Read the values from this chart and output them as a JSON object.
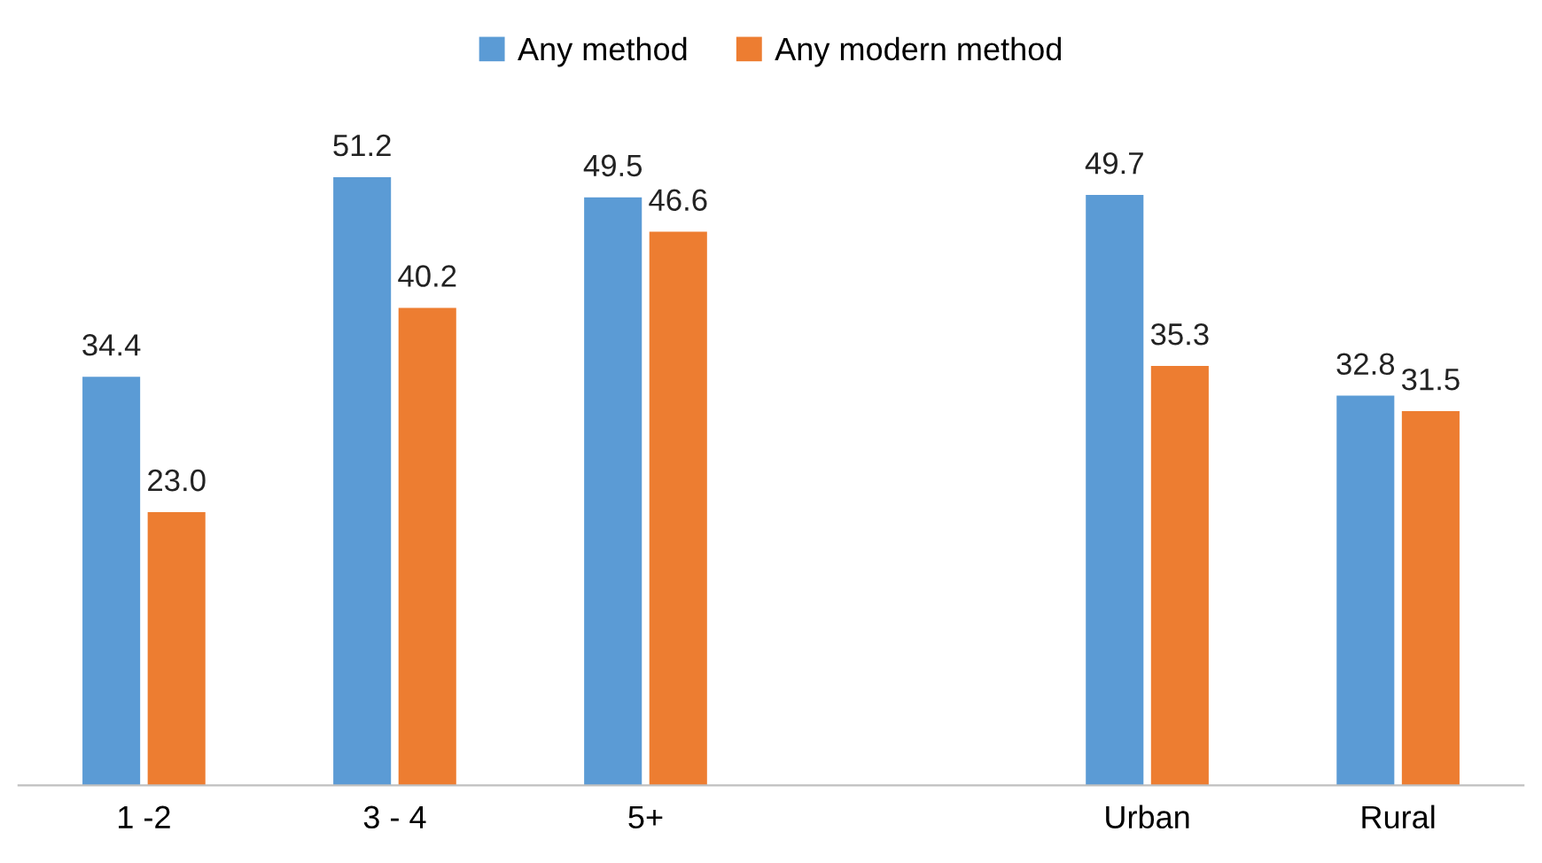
{
  "chart_data": {
    "type": "bar",
    "categories": [
      "1 -2",
      "3 - 4",
      "5+",
      null,
      "Urban",
      "Rural"
    ],
    "series": [
      {
        "name": "Any method",
        "color": "#5b9bd5",
        "values": [
          34.4,
          51.2,
          49.5,
          null,
          49.7,
          32.8
        ],
        "value_labels": [
          "34.4",
          "51.2",
          "49.5",
          null,
          "49.7",
          "32.8"
        ]
      },
      {
        "name": "Any modern method",
        "color": "#ed7d31",
        "values": [
          23.0,
          40.2,
          46.6,
          null,
          35.3,
          31.5
        ],
        "value_labels": [
          "23.0",
          "40.2",
          "46.6",
          null,
          "35.3",
          "31.5"
        ]
      }
    ],
    "legend": "top",
    "grid": false
  }
}
